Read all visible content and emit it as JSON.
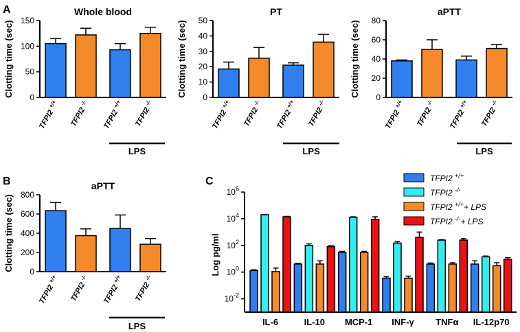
{
  "colors": {
    "wt": "#2f7fef",
    "ko": "#f58a2b",
    "cyan": "#33eeee",
    "red": "#ee1111"
  },
  "group_labels": [
    {
      "base": "TFPI2",
      "sup": "+/+"
    },
    {
      "base": "TFPI2",
      "sup": "-/-"
    },
    {
      "base": "TFPI2",
      "sup": "+/+"
    },
    {
      "base": "TFPI2",
      "sup": "-/-"
    }
  ],
  "lps_label": "LPS",
  "panel_letters": {
    "A": "A",
    "B": "B",
    "C": "C"
  },
  "chart_data": [
    {
      "panel": "A",
      "type": "bar",
      "title": "Whole blood",
      "ylabel": "Clotting time (sec)",
      "ylim": [
        0,
        150
      ],
      "yticks": [
        "0",
        "50",
        "100",
        "150"
      ],
      "categories": [
        "TFPI2 +/+",
        "TFPI2 -/-",
        "TFPI2 +/+ LPS",
        "TFPI2 -/- LPS"
      ],
      "values": [
        105,
        122,
        93,
        125
      ],
      "errors": [
        10,
        13,
        12,
        12
      ],
      "lps_annotation": "LPS"
    },
    {
      "panel": "A",
      "type": "bar",
      "title": "PT",
      "ylabel": "Clotting time (sec)",
      "ylim": [
        0,
        50
      ],
      "yticks": [
        "0",
        "10",
        "20",
        "30",
        "40",
        "50"
      ],
      "categories": [
        "TFPI2 +/+",
        "TFPI2 -/-",
        "TFPI2 +/+ LPS",
        "TFPI2 -/- LPS"
      ],
      "values": [
        18.5,
        25.5,
        21,
        36
      ],
      "errors": [
        4.5,
        7,
        1.5,
        5
      ],
      "lps_annotation": "LPS"
    },
    {
      "panel": "A",
      "type": "bar",
      "title": "aPTT",
      "ylabel": "Clotting time (sec)",
      "ylim": [
        0,
        80
      ],
      "yticks": [
        "0",
        "20",
        "40",
        "60",
        "80"
      ],
      "categories": [
        "TFPI2 +/+",
        "TFPI2 -/-",
        "TFPI2 +/+ LPS",
        "TFPI2 -/- LPS"
      ],
      "values": [
        38,
        50,
        39,
        51
      ],
      "errors": [
        1,
        10,
        4,
        4
      ],
      "lps_annotation": "LPS"
    },
    {
      "panel": "B",
      "type": "bar",
      "title": "aPTT",
      "ylabel": "Clotting time (sec)",
      "ylim": [
        0,
        800
      ],
      "yticks": [
        "0",
        "200",
        "400",
        "600",
        "800"
      ],
      "categories": [
        "TFPI2 +/+",
        "TFPI2 -/-",
        "TFPI2 +/+ LPS",
        "TFPI2 -/- LPS"
      ],
      "values": [
        635,
        375,
        450,
        285
      ],
      "errors": [
        85,
        70,
        140,
        60
      ],
      "lps_annotation": "LPS"
    },
    {
      "panel": "C",
      "type": "bar",
      "yscale": "log",
      "ylabel": "Log pg/ml",
      "ylim_exp": [
        -3,
        6
      ],
      "ytick_exps": [
        -2,
        0,
        2,
        4,
        6
      ],
      "categories": [
        "IL-6",
        "IL-10",
        "MCP-1",
        "INF-γ",
        "TNFα",
        "IL-12p70"
      ],
      "series": [
        {
          "name": "TFPI2 +/+",
          "sup": "+/+",
          "suffix": "",
          "values": [
            1.3,
            4,
            30,
            0.35,
            4,
            4
          ],
          "errors_high": [
            1.5,
            4.6,
            36,
            0.45,
            4.8,
            7
          ]
        },
        {
          "name": "TFPI2 -/-",
          "sup": "-/-",
          "suffix": "",
          "values": [
            20000,
            100,
            13000,
            150,
            250,
            14
          ],
          "errors_high": [
            21000,
            130,
            14000,
            200,
            270,
            16
          ]
        },
        {
          "name": "TFPI2 +/+ + LPS",
          "sup": "+/+",
          "suffix": "+ LPS",
          "values": [
            1.1,
            4,
            30,
            0.35,
            4,
            3
          ],
          "errors_high": [
            2,
            7,
            36,
            0.5,
            5,
            5
          ]
        },
        {
          "name": "TFPI2 -/- + LPS",
          "sup": "-/-",
          "suffix": "+ LPS",
          "values": [
            14000,
            80,
            9000,
            400,
            250,
            9
          ],
          "errors_high": [
            15000,
            95,
            14000,
            1000,
            320,
            12
          ]
        }
      ]
    }
  ]
}
